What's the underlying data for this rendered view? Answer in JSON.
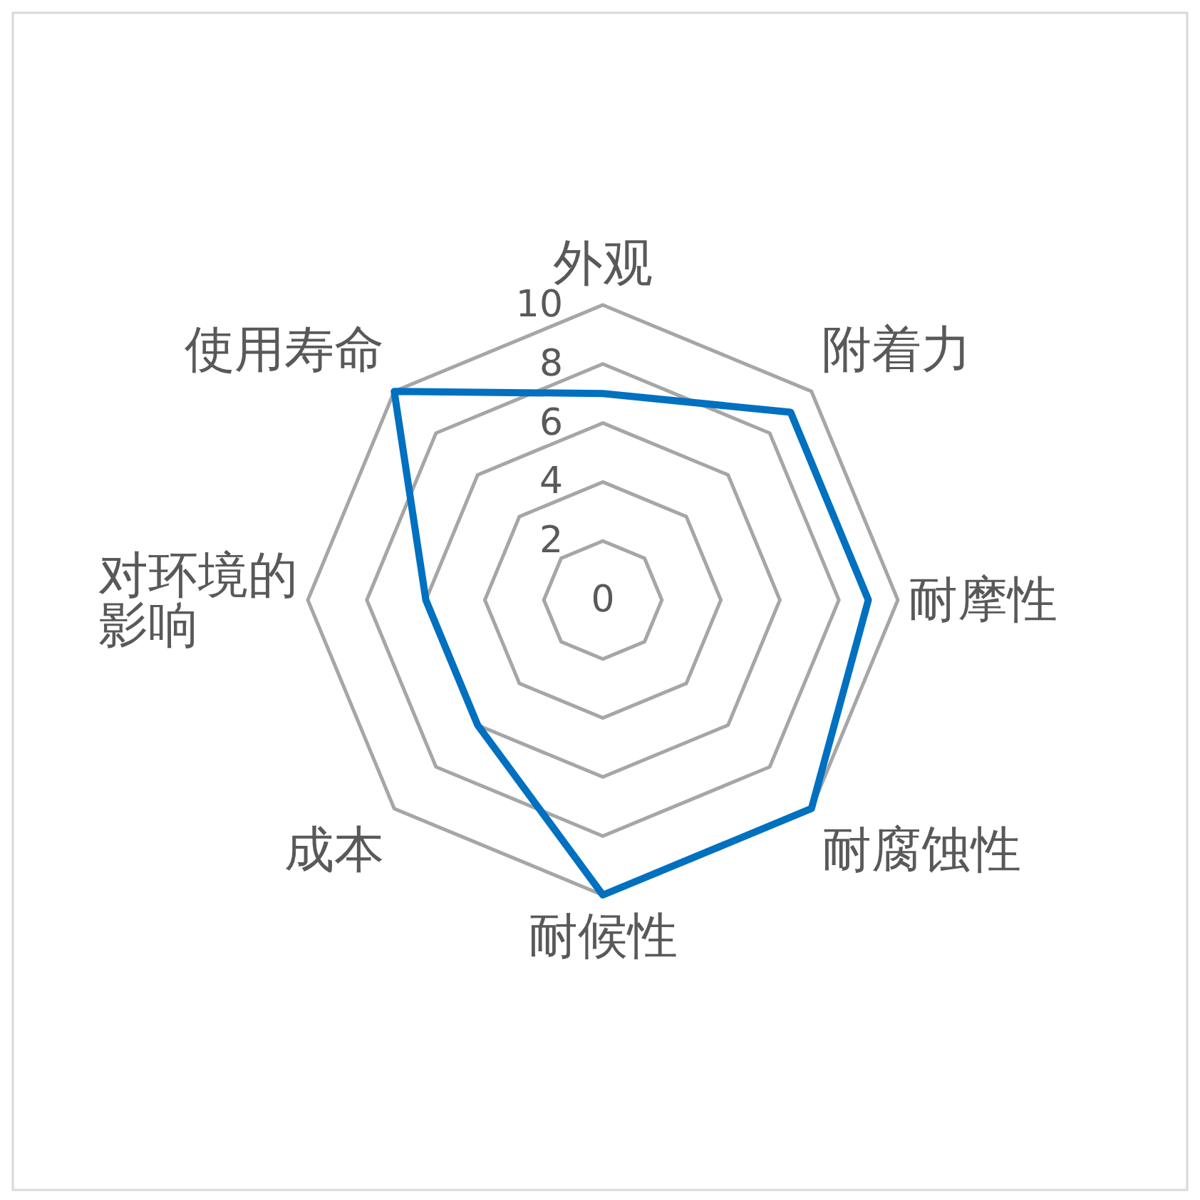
{
  "chart_data": {
    "type": "radar",
    "categories": [
      "外观",
      "附着力",
      "耐摩性",
      "耐腐蚀性",
      "耐候性",
      "成本",
      "对环境的影响",
      "使用寿命"
    ],
    "series": [
      {
        "color": "#0070c0",
        "values": [
          7,
          9,
          9,
          10,
          10,
          6,
          6,
          10
        ]
      }
    ],
    "ylim": [
      0,
      10
    ],
    "yticks": [
      0,
      2,
      4,
      6,
      8,
      10
    ],
    "grid": true
  }
}
